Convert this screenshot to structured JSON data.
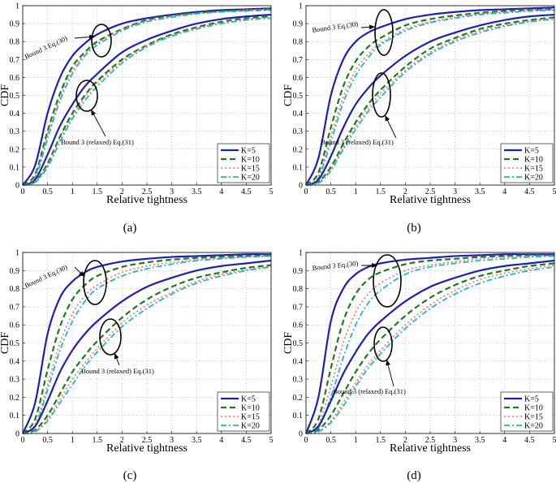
{
  "figure": {
    "subplots": [
      {
        "caption": "(a)",
        "annotation_upper": "Bound 3 Eq.(30)",
        "annotation_lower": "Bound 3 (relaxed) Eq.(31)",
        "upper_scale": 0.62,
        "lower_scale": 1.45
      },
      {
        "caption": "(b)",
        "annotation_upper": "Bound 3 Eq.(30)",
        "annotation_lower": "Bound 3 (relaxed) Eq.(31)",
        "upper_scale": 0.55,
        "lower_scale": 1.45
      },
      {
        "caption": "(c)",
        "annotation_upper": "Bound 3 Eq.(30)",
        "annotation_lower": "Bound 3 (relaxed) Eq.(31)",
        "upper_scale": 0.52,
        "lower_scale": 1.5
      },
      {
        "caption": "(d)",
        "annotation_upper": "Bound 3 Eq.(30)",
        "annotation_lower": "Bound 3 (relaxed) Eq.(31)",
        "upper_scale": 0.48,
        "lower_scale": 1.5
      }
    ]
  },
  "chart_data": [
    {
      "type": "line",
      "panel": "(a)",
      "xlabel": "Relative tightness",
      "ylabel": "CDF",
      "xlim": [
        0,
        5
      ],
      "ylim": [
        0,
        1
      ],
      "grid": true,
      "xticks": [
        "0",
        "0.5",
        "1",
        "1.5",
        "2",
        "2.5",
        "3",
        "3.5",
        "4",
        "4.5",
        "5"
      ],
      "yticks": [
        "0",
        "0.1",
        "0.2",
        "0.3",
        "0.4",
        "0.5",
        "0.6",
        "0.7",
        "0.8",
        "0.9",
        "1"
      ],
      "legend": {
        "position": "bottom-right",
        "entries": [
          "K=5",
          "K=10",
          "K=15",
          "K=20"
        ]
      },
      "x": [
        0,
        0.25,
        0.5,
        0.75,
        1,
        1.25,
        1.5,
        2,
        2.5,
        3,
        3.5,
        4,
        4.5,
        5
      ],
      "series": [
        {
          "name": "K=5",
          "group": "Bound 3 Eq.(30)",
          "color": "#1f1fb4",
          "values": [
            0,
            0.11,
            0.4,
            0.6,
            0.72,
            0.79,
            0.84,
            0.9,
            0.93,
            0.95,
            0.965,
            0.975,
            0.98,
            0.985
          ]
        },
        {
          "name": "K=10",
          "group": "Bound 3 Eq.(30)",
          "color": "#1e7a1e",
          "values": [
            0,
            0.06,
            0.3,
            0.51,
            0.66,
            0.74,
            0.8,
            0.87,
            0.92,
            0.945,
            0.96,
            0.97,
            0.975,
            0.98
          ]
        },
        {
          "name": "K=15",
          "group": "Bound 3 Eq.(30)",
          "color": "#ff6b6b",
          "values": [
            0,
            0.05,
            0.28,
            0.49,
            0.64,
            0.73,
            0.79,
            0.87,
            0.915,
            0.94,
            0.955,
            0.965,
            0.975,
            0.98
          ]
        },
        {
          "name": "K=20",
          "group": "Bound 3 Eq.(30)",
          "color": "#22b5c8",
          "values": [
            0,
            0.04,
            0.26,
            0.47,
            0.62,
            0.72,
            0.78,
            0.86,
            0.91,
            0.935,
            0.955,
            0.965,
            0.97,
            0.975
          ]
        },
        {
          "name": "K=5",
          "group": "Bound 3 (relaxed) Eq.(31)",
          "color": "#1f1fb4",
          "values": [
            0,
            0.03,
            0.17,
            0.33,
            0.45,
            0.55,
            0.62,
            0.74,
            0.81,
            0.86,
            0.9,
            0.925,
            0.94,
            0.95
          ]
        },
        {
          "name": "K=10",
          "group": "Bound 3 (relaxed) Eq.(31)",
          "color": "#1e7a1e",
          "values": [
            0,
            0.02,
            0.12,
            0.27,
            0.4,
            0.5,
            0.58,
            0.7,
            0.78,
            0.84,
            0.88,
            0.91,
            0.93,
            0.94
          ]
        },
        {
          "name": "K=15",
          "group": "Bound 3 (relaxed) Eq.(31)",
          "color": "#ff6b6b",
          "values": [
            0,
            0.02,
            0.11,
            0.26,
            0.38,
            0.49,
            0.57,
            0.69,
            0.78,
            0.835,
            0.875,
            0.905,
            0.925,
            0.935
          ]
        },
        {
          "name": "K=20",
          "group": "Bound 3 (relaxed) Eq.(31)",
          "color": "#22b5c8",
          "values": [
            0,
            0.015,
            0.1,
            0.24,
            0.37,
            0.47,
            0.55,
            0.68,
            0.77,
            0.83,
            0.87,
            0.9,
            0.92,
            0.93
          ]
        }
      ]
    },
    {
      "type": "line",
      "panel": "(b)",
      "xlabel": "Relative tightness",
      "ylabel": "CDF",
      "xlim": [
        0,
        5
      ],
      "ylim": [
        0,
        1
      ],
      "grid": true,
      "xticks": [
        "0",
        "0.5",
        "1",
        "1.5",
        "2",
        "2.5",
        "3",
        "3.5",
        "4",
        "4.5",
        "5"
      ],
      "yticks": [
        "0",
        "0.1",
        "0.2",
        "0.3",
        "0.4",
        "0.5",
        "0.6",
        "0.7",
        "0.8",
        "0.9",
        "1"
      ],
      "legend": {
        "position": "bottom-right",
        "entries": [
          "K=5",
          "K=10",
          "K=15",
          "K=20"
        ]
      },
      "x": [
        0,
        0.25,
        0.5,
        0.75,
        1,
        1.25,
        1.5,
        2,
        2.5,
        3,
        3.5,
        4,
        4.5,
        5
      ],
      "series": [
        {
          "name": "K=5",
          "group": "Bound 3 Eq.(30)",
          "color": "#1f1fb4",
          "values": [
            0,
            0.15,
            0.5,
            0.7,
            0.8,
            0.85,
            0.88,
            0.925,
            0.95,
            0.965,
            0.975,
            0.98,
            0.985,
            0.99
          ]
        },
        {
          "name": "K=10",
          "group": "Bound 3 Eq.(30)",
          "color": "#1e7a1e",
          "values": [
            0,
            0.07,
            0.32,
            0.55,
            0.69,
            0.77,
            0.82,
            0.89,
            0.925,
            0.945,
            0.96,
            0.97,
            0.975,
            0.98
          ]
        },
        {
          "name": "K=15",
          "group": "Bound 3 Eq.(30)",
          "color": "#ff6b6b",
          "values": [
            0,
            0.05,
            0.27,
            0.49,
            0.64,
            0.73,
            0.79,
            0.87,
            0.91,
            0.935,
            0.955,
            0.965,
            0.975,
            0.98
          ]
        },
        {
          "name": "K=20",
          "group": "Bound 3 Eq.(30)",
          "color": "#22b5c8",
          "values": [
            0,
            0.04,
            0.24,
            0.46,
            0.61,
            0.71,
            0.78,
            0.86,
            0.905,
            0.93,
            0.95,
            0.96,
            0.97,
            0.975
          ]
        },
        {
          "name": "K=5",
          "group": "Bound 3 (relaxed) Eq.(31)",
          "color": "#1f1fb4",
          "values": [
            0,
            0.03,
            0.16,
            0.32,
            0.45,
            0.54,
            0.61,
            0.72,
            0.8,
            0.85,
            0.89,
            0.92,
            0.94,
            0.95
          ]
        },
        {
          "name": "K=10",
          "group": "Bound 3 (relaxed) Eq.(31)",
          "color": "#1e7a1e",
          "values": [
            0,
            0.02,
            0.1,
            0.23,
            0.35,
            0.45,
            0.53,
            0.66,
            0.76,
            0.82,
            0.87,
            0.9,
            0.92,
            0.935
          ]
        },
        {
          "name": "K=15",
          "group": "Bound 3 (relaxed) Eq.(31)",
          "color": "#ff6b6b",
          "values": [
            0,
            0.015,
            0.09,
            0.21,
            0.33,
            0.43,
            0.51,
            0.64,
            0.74,
            0.81,
            0.86,
            0.89,
            0.915,
            0.93
          ]
        },
        {
          "name": "K=20",
          "group": "Bound 3 (relaxed) Eq.(31)",
          "color": "#22b5c8",
          "values": [
            0,
            0.01,
            0.08,
            0.2,
            0.31,
            0.41,
            0.49,
            0.63,
            0.73,
            0.8,
            0.85,
            0.885,
            0.91,
            0.925
          ]
        }
      ]
    },
    {
      "type": "line",
      "panel": "(c)",
      "xlabel": "Relative tightness",
      "ylabel": "CDF",
      "xlim": [
        0,
        5
      ],
      "ylim": [
        0,
        1
      ],
      "grid": true,
      "xticks": [
        "0",
        "0.5",
        "1",
        "1.5",
        "2",
        "2.5",
        "3",
        "3.5",
        "4",
        "4.5",
        "5"
      ],
      "yticks": [
        "0",
        "0.1",
        "0.2",
        "0.3",
        "0.4",
        "0.5",
        "0.6",
        "0.7",
        "0.8",
        "0.9",
        "1"
      ],
      "legend": {
        "position": "bottom-right",
        "entries": [
          "K=5",
          "K=10",
          "K=15",
          "K=20"
        ]
      },
      "x": [
        0,
        0.25,
        0.5,
        0.75,
        1,
        1.25,
        1.5,
        2,
        2.5,
        3,
        3.5,
        4,
        4.5,
        5
      ],
      "series": [
        {
          "name": "K=5",
          "group": "Bound 3 Eq.(30)",
          "color": "#1f1fb4",
          "values": [
            0,
            0.17,
            0.55,
            0.75,
            0.84,
            0.89,
            0.92,
            0.95,
            0.965,
            0.975,
            0.98,
            0.985,
            0.99,
            0.99
          ]
        },
        {
          "name": "K=10",
          "group": "Bound 3 Eq.(30)",
          "color": "#1e7a1e",
          "values": [
            0,
            0.08,
            0.35,
            0.59,
            0.74,
            0.82,
            0.87,
            0.92,
            0.945,
            0.96,
            0.97,
            0.975,
            0.98,
            0.985
          ]
        },
        {
          "name": "K=15",
          "group": "Bound 3 Eq.(30)",
          "color": "#ff6b6b",
          "values": [
            0,
            0.05,
            0.27,
            0.5,
            0.66,
            0.76,
            0.82,
            0.89,
            0.925,
            0.945,
            0.96,
            0.97,
            0.975,
            0.98
          ]
        },
        {
          "name": "K=20",
          "group": "Bound 3 Eq.(30)",
          "color": "#22b5c8",
          "values": [
            0,
            0.04,
            0.24,
            0.46,
            0.62,
            0.73,
            0.8,
            0.87,
            0.91,
            0.935,
            0.955,
            0.965,
            0.975,
            0.98
          ]
        },
        {
          "name": "K=5",
          "group": "Bound 3 (relaxed) Eq.(31)",
          "color": "#1f1fb4",
          "values": [
            0,
            0.04,
            0.18,
            0.34,
            0.46,
            0.55,
            0.62,
            0.73,
            0.81,
            0.86,
            0.9,
            0.925,
            0.94,
            0.955
          ]
        },
        {
          "name": "K=10",
          "group": "Bound 3 (relaxed) Eq.(31)",
          "color": "#1e7a1e",
          "values": [
            0,
            0.02,
            0.1,
            0.22,
            0.34,
            0.43,
            0.51,
            0.64,
            0.74,
            0.81,
            0.86,
            0.89,
            0.915,
            0.93
          ]
        },
        {
          "name": "K=15",
          "group": "Bound 3 (relaxed) Eq.(31)",
          "color": "#ff6b6b",
          "values": [
            0,
            0.015,
            0.08,
            0.19,
            0.3,
            0.39,
            0.47,
            0.61,
            0.71,
            0.78,
            0.84,
            0.88,
            0.905,
            0.925
          ]
        },
        {
          "name": "K=20",
          "group": "Bound 3 (relaxed) Eq.(31)",
          "color": "#22b5c8",
          "values": [
            0,
            0.01,
            0.07,
            0.17,
            0.27,
            0.37,
            0.45,
            0.59,
            0.69,
            0.77,
            0.83,
            0.87,
            0.9,
            0.92
          ]
        }
      ]
    },
    {
      "type": "line",
      "panel": "(d)",
      "xlabel": "Relative tightness",
      "ylabel": "CDF",
      "xlim": [
        0,
        5
      ],
      "ylim": [
        0,
        1
      ],
      "grid": true,
      "xticks": [
        "0",
        "0.5",
        "1",
        "1.5",
        "2",
        "2.5",
        "3",
        "3.5",
        "4",
        "4.5",
        "5"
      ],
      "yticks": [
        "0",
        "0.1",
        "0.2",
        "0.3",
        "0.4",
        "0.5",
        "0.6",
        "0.7",
        "0.8",
        "0.9",
        "1"
      ],
      "legend": {
        "position": "bottom-right",
        "entries": [
          "K=5",
          "K=10",
          "K=15",
          "K=20"
        ]
      },
      "x": [
        0,
        0.25,
        0.5,
        0.75,
        1,
        1.25,
        1.5,
        2,
        2.5,
        3,
        3.5,
        4,
        4.5,
        5
      ],
      "series": [
        {
          "name": "K=5",
          "group": "Bound 3 Eq.(30)",
          "color": "#1f1fb4",
          "values": [
            0,
            0.2,
            0.62,
            0.8,
            0.88,
            0.92,
            0.94,
            0.96,
            0.97,
            0.98,
            0.985,
            0.99,
            0.99,
            0.99
          ]
        },
        {
          "name": "K=10",
          "group": "Bound 3 Eq.(30)",
          "color": "#1e7a1e",
          "values": [
            0,
            0.08,
            0.36,
            0.62,
            0.77,
            0.85,
            0.89,
            0.935,
            0.955,
            0.965,
            0.975,
            0.98,
            0.985,
            0.985
          ]
        },
        {
          "name": "K=15",
          "group": "Bound 3 Eq.(30)",
          "color": "#ff6b6b",
          "values": [
            0,
            0.05,
            0.26,
            0.5,
            0.67,
            0.77,
            0.83,
            0.9,
            0.93,
            0.95,
            0.965,
            0.975,
            0.98,
            0.98
          ]
        },
        {
          "name": "K=20",
          "group": "Bound 3 Eq.(30)",
          "color": "#22b5c8",
          "values": [
            0,
            0.03,
            0.2,
            0.42,
            0.6,
            0.72,
            0.79,
            0.88,
            0.92,
            0.94,
            0.955,
            0.965,
            0.975,
            0.98
          ]
        },
        {
          "name": "K=5",
          "group": "Bound 3 (relaxed) Eq.(31)",
          "color": "#1f1fb4",
          "values": [
            0,
            0.04,
            0.18,
            0.33,
            0.45,
            0.55,
            0.62,
            0.73,
            0.81,
            0.86,
            0.9,
            0.925,
            0.94,
            0.955
          ]
        },
        {
          "name": "K=10",
          "group": "Bound 3 (relaxed) Eq.(31)",
          "color": "#1e7a1e",
          "values": [
            0,
            0.02,
            0.1,
            0.22,
            0.34,
            0.44,
            0.52,
            0.65,
            0.75,
            0.82,
            0.87,
            0.9,
            0.925,
            0.94
          ]
        },
        {
          "name": "K=15",
          "group": "Bound 3 (relaxed) Eq.(31)",
          "color": "#ff6b6b",
          "values": [
            0,
            0.01,
            0.07,
            0.17,
            0.28,
            0.38,
            0.46,
            0.6,
            0.71,
            0.79,
            0.85,
            0.885,
            0.91,
            0.93
          ]
        },
        {
          "name": "K=20",
          "group": "Bound 3 (relaxed) Eq.(31)",
          "color": "#22b5c8",
          "values": [
            0,
            0.01,
            0.06,
            0.15,
            0.26,
            0.36,
            0.44,
            0.58,
            0.69,
            0.77,
            0.83,
            0.87,
            0.9,
            0.92
          ]
        }
      ]
    }
  ]
}
